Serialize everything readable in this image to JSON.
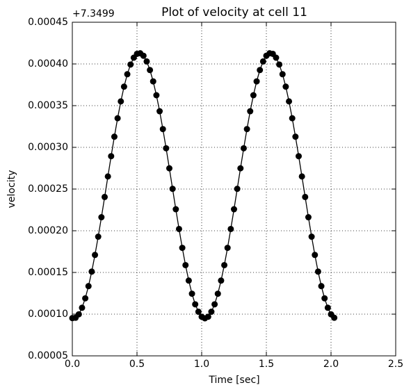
{
  "chart_data": {
    "type": "line",
    "title": "Plot of velocity at cell 11",
    "x_label": "Time [sec]",
    "y_label": "velocity",
    "y_offset_label": "+7.3499",
    "x": [
      0,
      0.025,
      0.05,
      0.075,
      0.1,
      0.125,
      0.15,
      0.175,
      0.2,
      0.225,
      0.25,
      0.275,
      0.3,
      0.325,
      0.35,
      0.375,
      0.4,
      0.425,
      0.45,
      0.475,
      0.5,
      0.525,
      0.55,
      0.575,
      0.6,
      0.625,
      0.65,
      0.675,
      0.7,
      0.725,
      0.75,
      0.775,
      0.8,
      0.825,
      0.85,
      0.875,
      0.9,
      0.925,
      0.95,
      0.975,
      1.0,
      1.025,
      1.05,
      1.075,
      1.1,
      1.125,
      1.15,
      1.175,
      1.2,
      1.225,
      1.25,
      1.275,
      1.3,
      1.325,
      1.35,
      1.375,
      1.4,
      1.425,
      1.45,
      1.475,
      1.5,
      1.525,
      1.55,
      1.575,
      1.6,
      1.625,
      1.65,
      1.675,
      1.7,
      1.725,
      1.75,
      1.775,
      1.8,
      1.825,
      1.85,
      1.875,
      1.9,
      1.925,
      1.95,
      1.975,
      2.0,
      2.025
    ],
    "values": [
      9.53e-05,
      9.57e-05,
      9.98e-05,
      0.0001077,
      0.000119,
      0.0001336,
      0.000151,
      0.000171,
      0.0001929,
      0.0002162,
      0.0002405,
      0.0002651,
      0.0002894,
      0.0003128,
      0.0003349,
      0.0003551,
      0.0003728,
      0.0003877,
      0.0003993,
      0.0004075,
      0.0004121,
      0.0004128,
      0.0004098,
      0.000403,
      0.0003927,
      0.0003791,
      0.0003625,
      0.0003433,
      0.0003219,
      0.0002989,
      0.0002749,
      0.0002503,
      0.0002258,
      0.0002021,
      0.0001795,
      0.0001588,
      0.0001403,
      0.0001245,
      0.0001118,
      0.0001029,
      9.69e-05,
      9.5e-05,
      9.69e-05,
      0.0001029,
      0.0001118,
      0.0001245,
      0.0001403,
      0.0001588,
      0.0001795,
      0.0002021,
      0.0002258,
      0.0002503,
      0.0002749,
      0.0002989,
      0.0003219,
      0.0003433,
      0.0003625,
      0.0003791,
      0.0003927,
      0.000403,
      0.0004098,
      0.0004128,
      0.0004121,
      0.0004075,
      0.0003993,
      0.0003877,
      0.0003728,
      0.0003551,
      0.0003349,
      0.0003128,
      0.0002894,
      0.0002651,
      0.0002405,
      0.0002162,
      0.0001929,
      0.000171,
      0.000151,
      0.0001336,
      0.000119,
      0.0001077,
      9.98e-05,
      9.57e-05
    ],
    "color": "#000000",
    "marker": "o",
    "xlim": [
      0,
      2.5
    ],
    "xticks": [
      {
        "value": 0,
        "label": "0.0"
      },
      0.5,
      {
        "value": 1,
        "label": "1.0"
      },
      1.5,
      {
        "value": 2,
        "label": "2.0"
      },
      2.5
    ],
    "ylim": [
      5e-05,
      0.00045
    ],
    "yticks": [
      {
        "value": 5e-05,
        "label": "0.00005"
      },
      {
        "value": 0.0001,
        "label": "0.00010"
      },
      {
        "value": 0.00015,
        "label": "0.00015"
      },
      {
        "value": 0.0002,
        "label": "0.00020"
      },
      {
        "value": 0.00025,
        "label": "0.00025"
      },
      {
        "value": 0.0003,
        "label": "0.00030"
      },
      {
        "value": 0.00035,
        "label": "0.00035"
      },
      {
        "value": 0.0004,
        "label": "0.00040"
      },
      {
        "value": 0.00045,
        "label": "0.00045"
      }
    ],
    "grid": true
  }
}
